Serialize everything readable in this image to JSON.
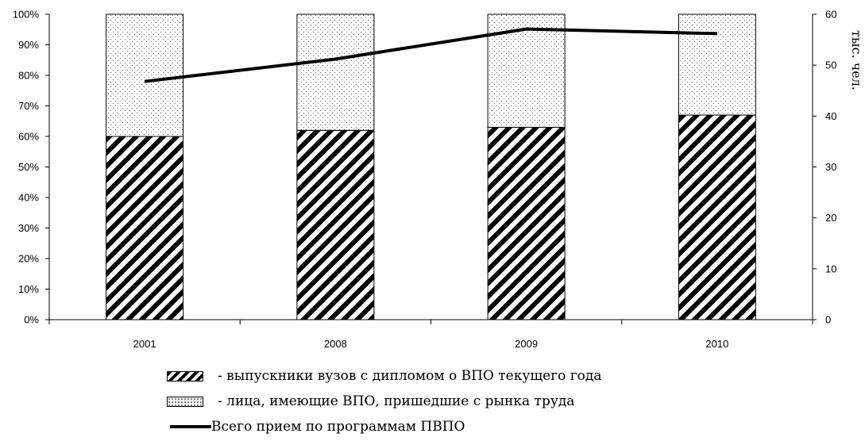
{
  "chart_data": {
    "type": "bar",
    "stacked": true,
    "categories": [
      "2001",
      "2008",
      "2009",
      "2010"
    ],
    "series": [
      {
        "name": "- выпускники вузов с дипломом о ВПО текущего года",
        "values": [
          60,
          62,
          63,
          67
        ],
        "pattern": "diagonal-hatch"
      },
      {
        "name": "- лица, имеющие ВПО, пришедшие с рынка труда",
        "values": [
          40,
          38,
          37,
          33
        ],
        "pattern": "dots"
      }
    ],
    "line_series": {
      "name": "Всего прием по программам ПВПО",
      "axis": "right",
      "values": [
        46.8,
        51.2,
        57.1,
        56.2
      ]
    },
    "left_axis": {
      "ticks": [
        "0%",
        "10%",
        "20%",
        "30%",
        "40%",
        "50%",
        "60%",
        "70%",
        "80%",
        "90%",
        "100%"
      ],
      "ylim": [
        0,
        100
      ]
    },
    "right_axis": {
      "label": "тыс. чел.",
      "ticks": [
        "0",
        "10",
        "20",
        "30",
        "40",
        "50",
        "60"
      ],
      "ylim": [
        0,
        60
      ]
    },
    "legend_position": "bottom",
    "grid": false
  }
}
